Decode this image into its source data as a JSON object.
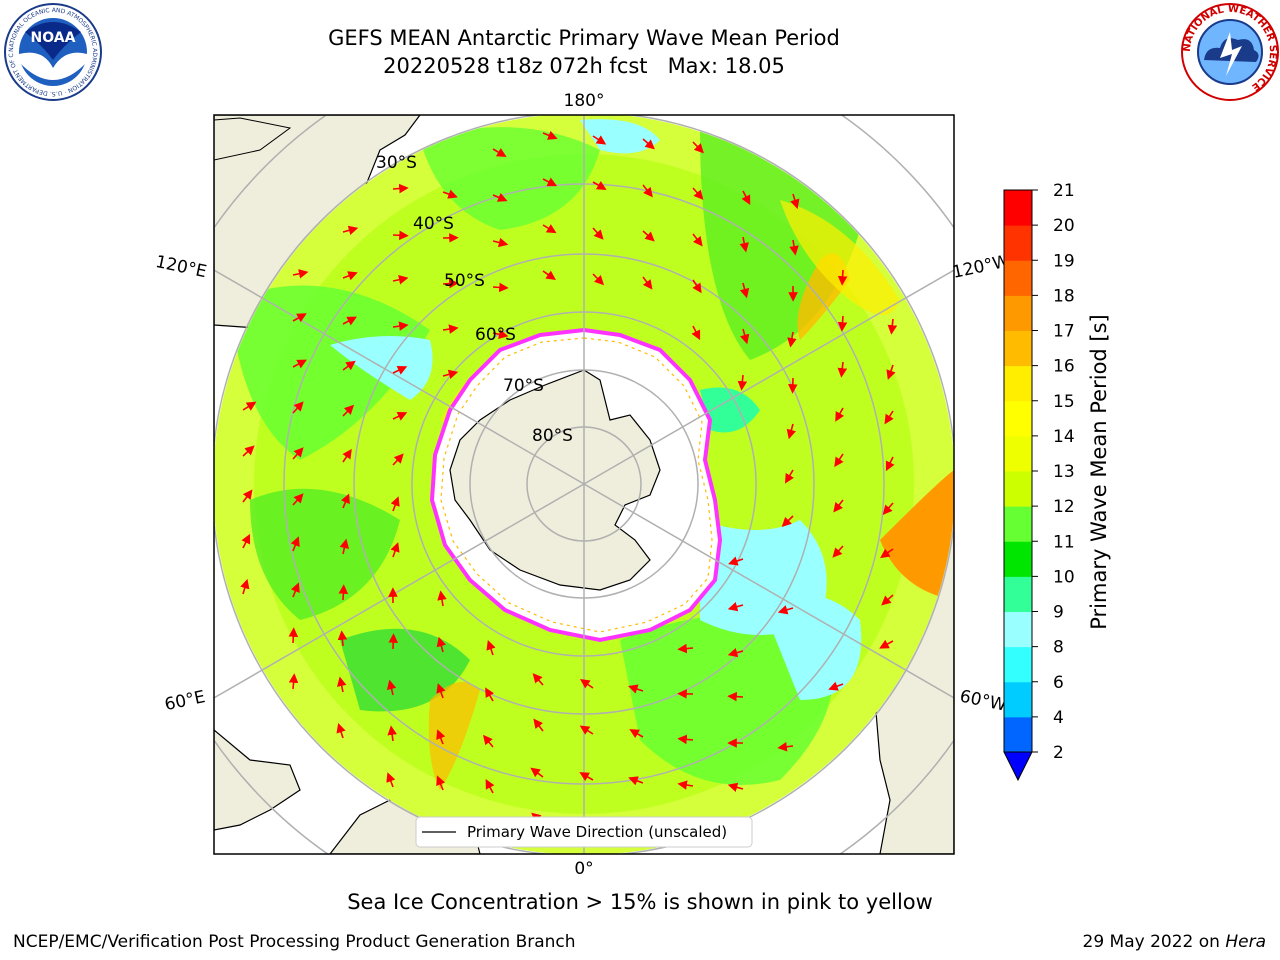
{
  "header": {
    "title_line1": "GEFS MEAN Antarctic Primary Wave Mean Period",
    "title_line2": "20220528 t18z 072h fcst   Max: 18.05"
  },
  "map": {
    "longitude_labels": {
      "top": "180°",
      "bottom": "0°",
      "left_upper": "120°E",
      "left_lower": "60°E",
      "right_upper": "120°W",
      "right_lower": "60°W"
    },
    "latitude_labels": [
      "30°S",
      "40°S",
      "50°S",
      "60°S",
      "70°S",
      "80°S"
    ],
    "legend_label": "Primary Wave Direction (unscaled)",
    "colors": {
      "land": "#efeddc",
      "sea_ice": "#ffffff",
      "ice_edge": "#ff33ff",
      "arrows": "#ff0000",
      "gridlines": "#b0b0b0"
    }
  },
  "colorbar": {
    "label": "Primary Wave Mean Period [s]",
    "ticks": [
      "2",
      "4",
      "6",
      "8",
      "9",
      "10",
      "11",
      "12",
      "13",
      "14",
      "15",
      "16",
      "17",
      "18",
      "19",
      "20",
      "21"
    ],
    "colors": [
      "#0066ff",
      "#00ccff",
      "#33ffff",
      "#99ffff",
      "#33ff99",
      "#00e600",
      "#66ff33",
      "#ccff00",
      "#eeff00",
      "#ffff00",
      "#ffee00",
      "#ffbb00",
      "#ff9900",
      "#ff6600",
      "#ff3300",
      "#ff0000"
    ],
    "extend_color": "#0000ff"
  },
  "note": "Sea Ice Concentration > 15% is shown in pink to yellow",
  "footer": {
    "left": "NCEP/EMC/Verification Post Processing Product Generation Branch",
    "right_date": "29 May 2022 on ",
    "right_host": "Hera"
  },
  "logos": {
    "noaa": "NOAA",
    "noaa_ring": "NATIONAL OCEANIC AND ATMOSPHERIC ADMINISTRATION · U.S. DEPARTMENT OF COMMERCE",
    "nws_ring": "NATIONAL WEATHER SERVICE"
  }
}
